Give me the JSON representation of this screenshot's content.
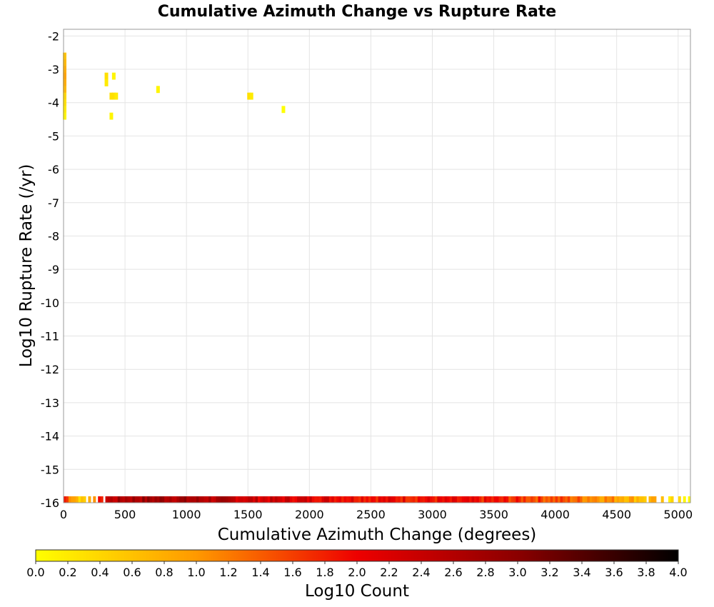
{
  "chart_data": {
    "type": "heatmap",
    "title": "Cumulative Azimuth Change vs Rupture Rate",
    "xlabel": "Cumulative Azimuth Change (degrees)",
    "ylabel": "Log10 Rupture Rate (/yr)",
    "xlim": [
      0,
      5100
    ],
    "ylim": [
      -16,
      -1.8
    ],
    "x_ticks": [
      0,
      500,
      1000,
      1500,
      2000,
      2500,
      3000,
      3500,
      4000,
      4500,
      5000
    ],
    "y_ticks": [
      -16,
      -15,
      -14,
      -13,
      -12,
      -11,
      -10,
      -9,
      -8,
      -7,
      -6,
      -5,
      -4,
      -3,
      -2
    ],
    "grid": true,
    "colorbar": {
      "label": "Log10 Count",
      "min": 0.0,
      "max": 4.0,
      "ticks": [
        "0.0",
        "0.2",
        "0.4",
        "0.6",
        "0.8",
        "1.0",
        "1.2",
        "1.4",
        "1.6",
        "1.8",
        "2.0",
        "2.2",
        "2.4",
        "2.6",
        "2.8",
        "3.0",
        "3.2",
        "3.4",
        "3.6",
        "3.8",
        "4.0"
      ],
      "colors": [
        "#ffff00",
        "#ff9900",
        "#ee0000",
        "#8b0000",
        "#000000"
      ]
    },
    "bin_width_degrees": 20,
    "cells": [
      {
        "x": 0,
        "y": -2.6,
        "value": 0.6
      },
      {
        "x": 0,
        "y": -2.8,
        "value": 0.7
      },
      {
        "x": 0,
        "y": -3.0,
        "value": 0.8
      },
      {
        "x": 0,
        "y": -3.2,
        "value": 0.9
      },
      {
        "x": 0,
        "y": -3.4,
        "value": 0.8
      },
      {
        "x": 0,
        "y": -3.6,
        "value": 0.7
      },
      {
        "x": 0,
        "y": -3.8,
        "value": 0.4
      },
      {
        "x": 0,
        "y": -4.0,
        "value": 0.3
      },
      {
        "x": 0,
        "y": -4.2,
        "value": 0.2
      },
      {
        "x": 0,
        "y": -4.4,
        "value": 0.1
      },
      {
        "x": 340,
        "y": -3.2,
        "value": 0.3
      },
      {
        "x": 340,
        "y": -3.4,
        "value": 0.2
      },
      {
        "x": 400,
        "y": -3.2,
        "value": 0.1
      },
      {
        "x": 380,
        "y": -3.8,
        "value": 0.3
      },
      {
        "x": 400,
        "y": -3.8,
        "value": 0.3
      },
      {
        "x": 420,
        "y": -3.8,
        "value": 0.2
      },
      {
        "x": 380,
        "y": -4.4,
        "value": 0.1
      },
      {
        "x": 760,
        "y": -3.6,
        "value": 0.1
      },
      {
        "x": 1500,
        "y": -3.8,
        "value": 0.3
      },
      {
        "x": 1520,
        "y": -3.8,
        "value": 0.2
      },
      {
        "x": 1780,
        "y": -4.2,
        "value": 0.0
      }
    ],
    "bottom_row": {
      "y": -16,
      "profile": [
        {
          "x": 0,
          "value": 2.0
        },
        {
          "x": 60,
          "value": 1.2
        },
        {
          "x": 140,
          "value": 0.5
        },
        {
          "x": 250,
          "value": 1.0
        },
        {
          "x": 330,
          "value": 2.4
        },
        {
          "x": 500,
          "value": 2.7
        },
        {
          "x": 800,
          "value": 2.8
        },
        {
          "x": 1200,
          "value": 2.6
        },
        {
          "x": 1600,
          "value": 2.3
        },
        {
          "x": 2000,
          "value": 2.2
        },
        {
          "x": 2500,
          "value": 2.0
        },
        {
          "x": 3000,
          "value": 1.9
        },
        {
          "x": 3500,
          "value": 1.8
        },
        {
          "x": 4000,
          "value": 1.5
        },
        {
          "x": 4500,
          "value": 1.0
        },
        {
          "x": 4800,
          "value": 0.6
        },
        {
          "x": 5100,
          "value": 0.1
        }
      ]
    }
  }
}
